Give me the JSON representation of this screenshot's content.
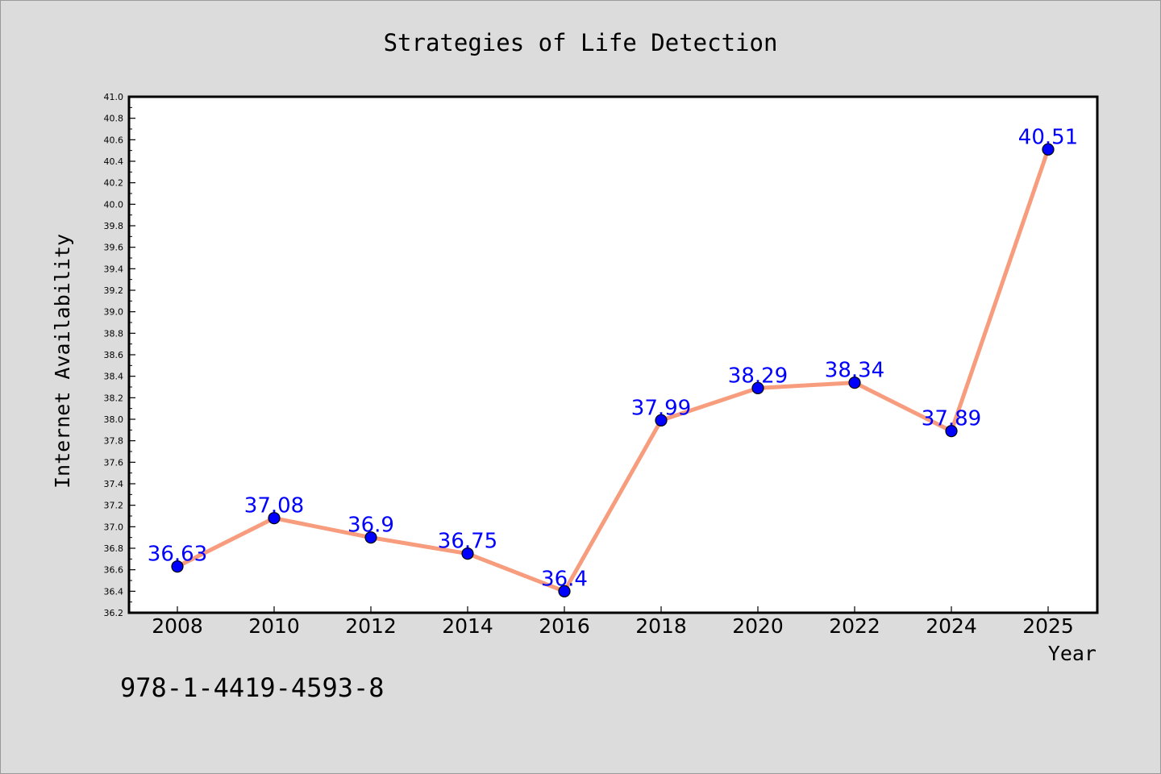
{
  "chart_data": {
    "type": "line",
    "title": "Strategies of Life Detection",
    "xlabel": "Year",
    "ylabel": "Internet Availability",
    "categories": [
      "2008",
      "2010",
      "2012",
      "2014",
      "2016",
      "2018",
      "2020",
      "2022",
      "2024",
      "2025"
    ],
    "values": [
      36.63,
      37.08,
      36.9,
      36.75,
      36.4,
      37.99,
      38.29,
      38.34,
      37.89,
      40.51
    ],
    "data_labels": [
      "36.63",
      "37.08",
      "36.9",
      "36.75",
      "36.4",
      "37.99",
      "38.29",
      "38.34",
      "37.89",
      "40.51"
    ],
    "ylim": [
      36.2,
      41.0
    ],
    "y_major_ticks": [
      "36.2",
      "36.4",
      "36.6",
      "36.8",
      "37.0",
      "37.2",
      "37.4",
      "37.6",
      "37.8",
      "38.0",
      "38.2",
      "38.4",
      "38.6",
      "38.8",
      "39.0",
      "39.2",
      "39.4",
      "39.6",
      "39.8",
      "40.0",
      "40.2",
      "40.4",
      "40.6",
      "40.8",
      "41.0"
    ],
    "grid": false,
    "legend": "none",
    "colors": {
      "line": "#f79c7c",
      "marker": "#0000ff",
      "label": "#0000ff",
      "background": "#dcdcdc",
      "plot_background": "#ffffff"
    }
  },
  "footer": {
    "isbn": "978-1-4419-4593-8"
  }
}
